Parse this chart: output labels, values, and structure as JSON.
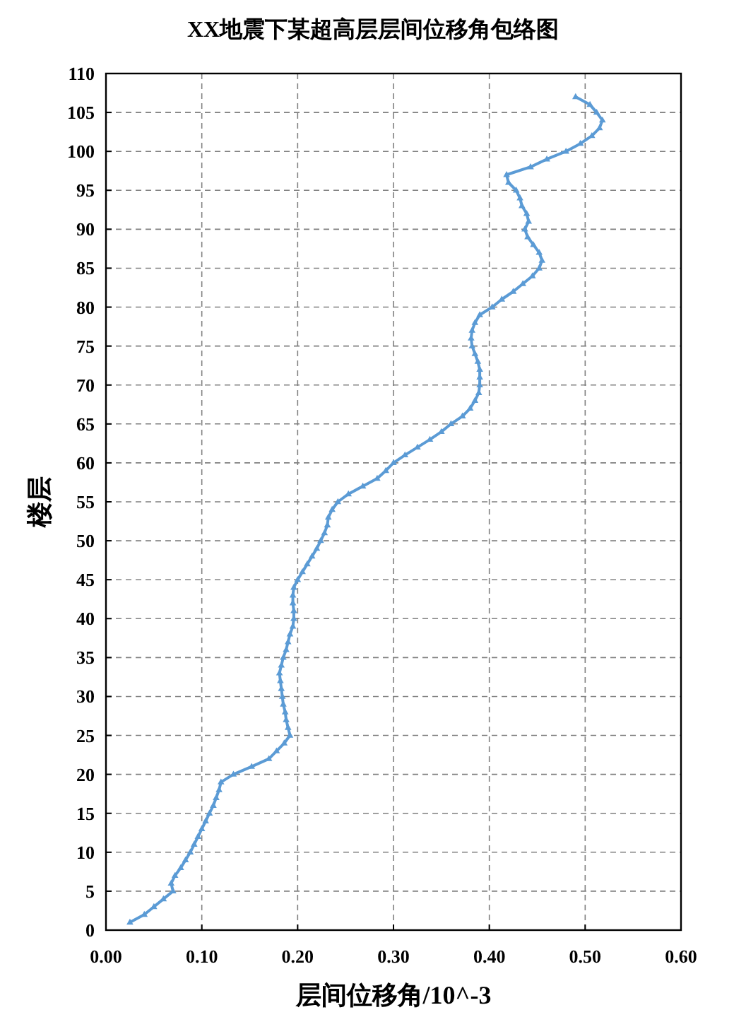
{
  "chart_data": {
    "type": "line",
    "title": "XX地震下某超高层层间位移角包络图",
    "xlabel": "层间位移角/10^-3",
    "ylabel": "楼层",
    "xlim": [
      0,
      0.6
    ],
    "xticks": [
      {
        "value": 0,
        "label": "0.00"
      },
      {
        "value": 0.1,
        "label": "0.10"
      },
      {
        "value": 0.2,
        "label": "0.20"
      },
      {
        "value": 0.3,
        "label": "0.30"
      },
      {
        "value": 0.4,
        "label": "0.40"
      },
      {
        "value": 0.5,
        "label": "0.50"
      },
      {
        "value": 0.6,
        "label": "0.60"
      }
    ],
    "ylim": [
      0,
      110
    ],
    "yticks": [
      0,
      5,
      10,
      15,
      20,
      25,
      30,
      35,
      40,
      45,
      50,
      55,
      60,
      65,
      70,
      75,
      80,
      85,
      90,
      95,
      100,
      105,
      110
    ],
    "grid": true,
    "marker": "triangle",
    "line_style": "solid",
    "series": [
      {
        "color": "#5b9bd5",
        "x": [
          0.025,
          0.04,
          0.05,
          0.06,
          0.07,
          0.068,
          0.072,
          0.078,
          0.083,
          0.088,
          0.092,
          0.096,
          0.1,
          0.104,
          0.108,
          0.112,
          0.115,
          0.118,
          0.12,
          0.133,
          0.152,
          0.17,
          0.178,
          0.186,
          0.192,
          0.19,
          0.188,
          0.187,
          0.185,
          0.184,
          0.183,
          0.182,
          0.181,
          0.183,
          0.185,
          0.188,
          0.19,
          0.192,
          0.195,
          0.196,
          0.196,
          0.195,
          0.195,
          0.196,
          0.2,
          0.205,
          0.21,
          0.215,
          0.22,
          0.224,
          0.228,
          0.231,
          0.232,
          0.236,
          0.242,
          0.253,
          0.268,
          0.283,
          0.292,
          0.3,
          0.312,
          0.325,
          0.338,
          0.35,
          0.36,
          0.372,
          0.38,
          0.385,
          0.389,
          0.39,
          0.39,
          0.39,
          0.388,
          0.385,
          0.382,
          0.381,
          0.382,
          0.385,
          0.39,
          0.403,
          0.413,
          0.425,
          0.435,
          0.445,
          0.452,
          0.455,
          0.452,
          0.446,
          0.44,
          0.437,
          0.441,
          0.439,
          0.434,
          0.432,
          0.428,
          0.42,
          0.418,
          0.443,
          0.46,
          0.48,
          0.495,
          0.507,
          0.515,
          0.518,
          0.512,
          0.505,
          0.49
        ],
        "values": [
          1,
          2,
          3,
          4,
          5,
          6,
          7,
          8,
          9,
          10,
          11,
          12,
          13,
          14,
          15,
          16,
          17,
          18,
          19,
          20,
          21,
          22,
          23,
          24,
          25,
          26,
          27,
          28,
          29,
          30,
          31,
          32,
          33,
          34,
          35,
          36,
          37,
          38,
          39,
          40,
          41,
          42,
          43,
          44,
          45,
          46,
          47,
          48,
          49,
          50,
          51,
          52,
          53,
          54,
          55,
          56,
          57,
          58,
          59,
          60,
          61,
          62,
          63,
          64,
          65,
          66,
          67,
          68,
          69,
          70,
          71,
          72,
          73,
          74,
          75,
          76,
          77,
          78,
          79,
          80,
          81,
          82,
          83,
          84,
          85,
          86,
          87,
          88,
          89,
          90,
          91,
          92,
          93,
          94,
          95,
          96,
          97,
          98,
          99,
          100,
          101,
          102,
          103,
          104,
          105,
          106,
          107
        ]
      }
    ]
  }
}
